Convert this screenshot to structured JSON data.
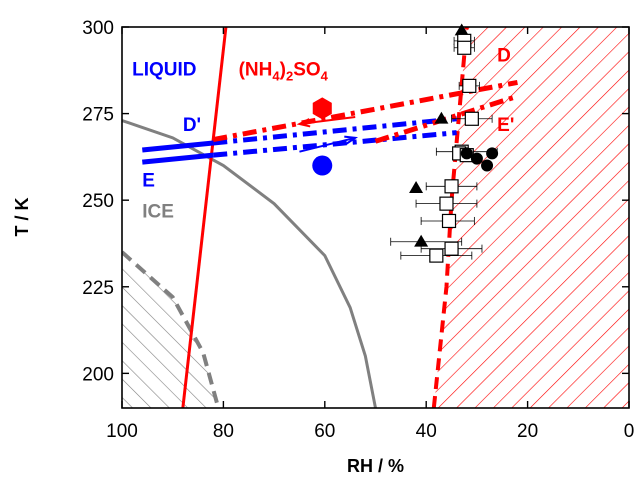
{
  "chart_data": {
    "type": "scatter",
    "title": "",
    "xlabel": "RH / %",
    "ylabel": "T / K",
    "xlim": [
      100,
      0
    ],
    "ylim": [
      190,
      300
    ],
    "x_reversed": true,
    "grid": false,
    "legend": "none",
    "xticks": [
      {
        "value": 100,
        "label": "100"
      },
      {
        "value": 80,
        "label": "80"
      },
      {
        "value": 60,
        "label": "60"
      },
      {
        "value": 40,
        "label": "40"
      },
      {
        "value": 20,
        "label": "20"
      },
      {
        "value": 0,
        "label": "0"
      }
    ],
    "yticks": [
      {
        "value": 200,
        "label": "200"
      },
      {
        "value": 225,
        "label": "225"
      },
      {
        "value": 250,
        "label": "250"
      },
      {
        "value": 275,
        "label": "275"
      },
      {
        "value": 300,
        "label": "300"
      }
    ],
    "curves": [
      {
        "id": "ice-line",
        "color": "#808080",
        "style": "solid",
        "points": [
          [
            100,
            273
          ],
          [
            90,
            268
          ],
          [
            80,
            260
          ],
          [
            70,
            249
          ],
          [
            60,
            234
          ],
          [
            55,
            219
          ],
          [
            52,
            205
          ],
          [
            50,
            190
          ]
        ]
      },
      {
        "id": "ice-dashed",
        "color": "#808080",
        "style": "dashed",
        "points": [
          [
            100,
            235
          ],
          [
            90,
            222
          ],
          [
            84,
            206
          ],
          [
            81,
            190
          ]
        ]
      },
      {
        "id": "red-steep-line",
        "color": "#ff0000",
        "style": "solid",
        "points": [
          [
            88,
            190
          ],
          [
            79.5,
            300
          ]
        ]
      },
      {
        "id": "red-dashed-boundary",
        "color": "#ff0000",
        "style": "dashed",
        "points": [
          [
            38.5,
            190
          ],
          [
            36,
            225
          ],
          [
            35,
            250
          ],
          [
            33.5,
            275
          ],
          [
            32,
            300
          ]
        ]
      },
      {
        "id": "blue-D-prime",
        "color": "#0000ff",
        "style": "solid",
        "points": [
          [
            96,
            264.5
          ],
          [
            82,
            266.5
          ]
        ]
      },
      {
        "id": "blue-D-prime-dashdot",
        "color": "#0000ff",
        "style": "dashdot",
        "points": [
          [
            82,
            266.5
          ],
          [
            34,
            273.5
          ]
        ]
      },
      {
        "id": "blue-E",
        "color": "#0000ff",
        "style": "solid",
        "points": [
          [
            96,
            261
          ],
          [
            82,
            263
          ]
        ]
      },
      {
        "id": "blue-E-dashdot",
        "color": "#0000ff",
        "style": "dashdot",
        "points": [
          [
            82,
            263
          ],
          [
            34,
            269.5
          ]
        ]
      },
      {
        "id": "red-D",
        "color": "#ff0000",
        "style": "dashdot",
        "points": [
          [
            82,
            267.5
          ],
          [
            22,
            284
          ]
        ]
      },
      {
        "id": "red-E-prime",
        "color": "#ff0000",
        "style": "dashdot",
        "points": [
          [
            50,
            267
          ],
          [
            22,
            280
          ]
        ]
      }
    ],
    "hatched_regions": [
      {
        "id": "ice-region",
        "color": "#808080",
        "points": [
          [
            100,
            235
          ],
          [
            90,
            222
          ],
          [
            84,
            206
          ],
          [
            81,
            190
          ],
          [
            100,
            190
          ]
        ]
      },
      {
        "id": "ammonium-sulfate-region",
        "color": "#ff0000",
        "points": [
          [
            38.5,
            190
          ],
          [
            36,
            225
          ],
          [
            35,
            250
          ],
          [
            33.5,
            275
          ],
          [
            32,
            300
          ],
          [
            0,
            300
          ],
          [
            0,
            190
          ]
        ]
      }
    ],
    "arrows": [
      {
        "id": "red-arrow",
        "color": "#ff0000",
        "from": [
          54,
          274
        ],
        "to": [
          65,
          272
        ]
      },
      {
        "id": "blue-arrow",
        "color": "#0000ff",
        "from": [
          65,
          264
        ],
        "to": [
          54,
          268
        ]
      }
    ],
    "series": [
      {
        "marker": "triangle",
        "color": "#000000",
        "points": [
          [
            33,
            299
          ],
          [
            37,
            273.5
          ],
          [
            42,
            253.5
          ],
          [
            41,
            238
          ]
        ]
      },
      {
        "marker": "open-square",
        "color": "#000000",
        "points": [
          [
            32.5,
            296
          ],
          [
            32.5,
            294
          ],
          [
            31.5,
            283
          ],
          [
            31,
            273.5
          ],
          [
            33,
            264
          ],
          [
            33.5,
            263.5
          ],
          [
            32,
            263
          ],
          [
            35,
            254
          ],
          [
            36,
            249
          ],
          [
            35.5,
            244
          ],
          [
            35,
            236
          ],
          [
            38,
            234
          ]
        ]
      },
      {
        "marker": "circle",
        "color": "#000000",
        "points": [
          [
            32,
            263.5
          ],
          [
            30,
            262
          ],
          [
            28,
            260
          ],
          [
            27,
            263.5
          ]
        ]
      },
      {
        "marker": "hexagon",
        "color": "#ff0000",
        "points": [
          [
            60.5,
            276.5
          ]
        ]
      },
      {
        "marker": "circle",
        "color": "#0000ff",
        "points": [
          [
            60.5,
            260
          ]
        ]
      }
    ],
    "errorbars_x": [
      {
        "x": 32.5,
        "y": 296,
        "lo": 30.5,
        "hi": 34.5
      },
      {
        "x": 32.5,
        "y": 294,
        "lo": 30.5,
        "hi": 34.5
      },
      {
        "x": 31.5,
        "y": 283,
        "lo": 29.5,
        "hi": 33.5
      },
      {
        "x": 31,
        "y": 273.5,
        "lo": 27,
        "hi": 35
      },
      {
        "x": 35,
        "y": 254,
        "lo": 30,
        "hi": 40
      },
      {
        "x": 36,
        "y": 249,
        "lo": 30,
        "hi": 42
      },
      {
        "x": 35.5,
        "y": 244,
        "lo": 30.5,
        "hi": 41
      },
      {
        "x": 35,
        "y": 236,
        "lo": 29,
        "hi": 41
      },
      {
        "x": 38,
        "y": 234,
        "lo": 31,
        "hi": 45
      },
      {
        "x": 41,
        "y": 238,
        "lo": 33,
        "hi": 47
      },
      {
        "x": 33,
        "y": 264,
        "lo": 26,
        "hi": 38
      }
    ],
    "annotations": [
      {
        "id": "liquid",
        "text": "LIQUID",
        "color": "#0000ff",
        "x": 98,
        "y": 286
      },
      {
        "id": "nh4so4",
        "text": "(NH4)2SO4",
        "color": "#ff0000",
        "x": 77,
        "y": 286
      },
      {
        "id": "ice",
        "text": "ICE",
        "color": "#808080",
        "x": 96,
        "y": 245
      },
      {
        "id": "D",
        "text": "D",
        "color": "#ff0000",
        "x": 26,
        "y": 290
      },
      {
        "id": "D-prime",
        "text": "D'",
        "color": "#0000ff",
        "x": 88,
        "y": 270
      },
      {
        "id": "E",
        "text": "E",
        "color": "#0000ff",
        "x": 96,
        "y": 254
      },
      {
        "id": "E-prime",
        "text": "E'",
        "color": "#ff0000",
        "x": 26,
        "y": 270
      }
    ]
  }
}
